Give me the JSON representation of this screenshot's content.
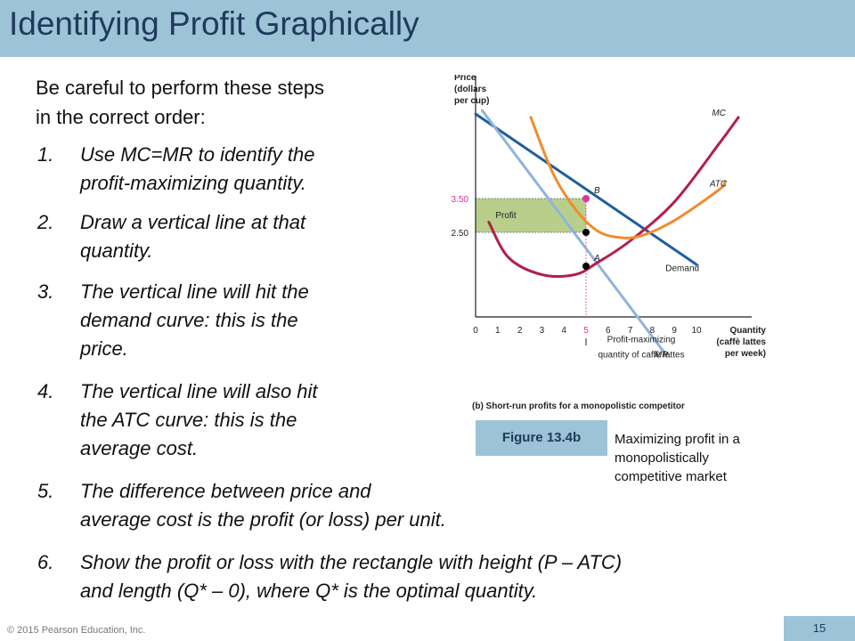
{
  "slide": {
    "title": "Identifying Profit Graphically",
    "intro": [
      "Be careful to perform these steps",
      "in the correct order:"
    ],
    "steps": [
      {
        "num": "1.",
        "lines": [
          "Use MC=MR to identify the",
          "profit-maximizing quantity."
        ]
      },
      {
        "num": "2.",
        "lines": [
          "Draw a vertical line at that",
          "quantity."
        ]
      },
      {
        "num": "3.",
        "lines": [
          "The vertical line will hit the",
          "demand curve: this is the",
          "price."
        ]
      },
      {
        "num": "4.",
        "lines": [
          "The vertical line will also hit",
          "the ATC curve: this is the",
          "average cost."
        ]
      },
      {
        "num": "5.",
        "lines": [
          "The difference between price and",
          "average cost is the profit (or loss) per unit."
        ]
      },
      {
        "num": "6.",
        "lines": [
          "Show the profit or loss with the rectangle with height (P – ATC)",
          "and length (Q* – 0), where Q* is the optimal quantity."
        ]
      }
    ],
    "figure_label": "Figure 13.4b",
    "figure_caption": [
      "Maximizing profit in a",
      "monopolistically",
      "competitive market"
    ],
    "footer": "© 2015 Pearson Education, Inc.",
    "page_number": "15"
  },
  "chart_data": {
    "type": "line",
    "title": "(b) Short-run profits for a monopolistic competitor",
    "ylabel": [
      "Price",
      "(dollars",
      "per cup)"
    ],
    "xlabel": [
      "Quantity",
      "(caffè lattes",
      "per week)"
    ],
    "x_ticks": [
      0,
      1,
      2,
      3,
      4,
      5,
      6,
      7,
      8,
      9,
      10
    ],
    "xlim": [
      0,
      12.5
    ],
    "ylim": [
      0,
      7
    ],
    "y_tick_labels": [
      {
        "value": 3.5,
        "label": "3.50",
        "color": "#d6339a"
      },
      {
        "value": 2.5,
        "label": "2.50",
        "color": "#222222"
      }
    ],
    "series": [
      {
        "name": "Demand",
        "color": "#1f5e9e",
        "points": [
          [
            0,
            6
          ],
          [
            10,
            1.55
          ]
        ]
      },
      {
        "name": "MR",
        "color": "#8fb3dc",
        "points": [
          [
            0.3,
            6.1
          ],
          [
            8.6,
            -1.1
          ]
        ]
      },
      {
        "name": "MC",
        "color": "#b31e4d",
        "points": [
          [
            0.6,
            2.8
          ],
          [
            1.5,
            1.75
          ],
          [
            3,
            1.25
          ],
          [
            4.5,
            1.25
          ],
          [
            5.5,
            1.6
          ],
          [
            7,
            2.25
          ],
          [
            9,
            3.4
          ],
          [
            11,
            5.1
          ],
          [
            11.9,
            5.9
          ]
        ]
      },
      {
        "name": "ATC",
        "color": "#f08c2e",
        "points": [
          [
            2.5,
            5.9
          ],
          [
            3.5,
            4.25
          ],
          [
            4.5,
            3.2
          ],
          [
            5.5,
            2.55
          ],
          [
            6.5,
            2.35
          ],
          [
            7.5,
            2.4
          ],
          [
            9,
            2.85
          ],
          [
            11,
            3.75
          ],
          [
            11.3,
            4.0
          ]
        ]
      }
    ],
    "annotations": [
      {
        "label": "B",
        "x": 5,
        "y": 3.5
      },
      {
        "label": "A",
        "x": 5,
        "y": 1.5
      },
      {
        "label": "Profit",
        "x": 0.9,
        "y": 3.0
      },
      {
        "label": "Profit-maximizing",
        "x": 7.5,
        "y": -0.75
      },
      {
        "label": "quantity of caffè lattes",
        "x": 7.5,
        "y": -1.2
      }
    ],
    "profit_rectangle": {
      "x": [
        0,
        5
      ],
      "y": [
        2.5,
        3.5
      ],
      "color": "#b7cf8b"
    },
    "optimal_quantity": 5,
    "points": [
      {
        "x": 5,
        "y": 3.5,
        "color": "#e0339a"
      },
      {
        "x": 5,
        "y": 2.5,
        "color": "#000000"
      },
      {
        "x": 5,
        "y": 1.5,
        "color": "#000000"
      }
    ],
    "grid": false
  }
}
